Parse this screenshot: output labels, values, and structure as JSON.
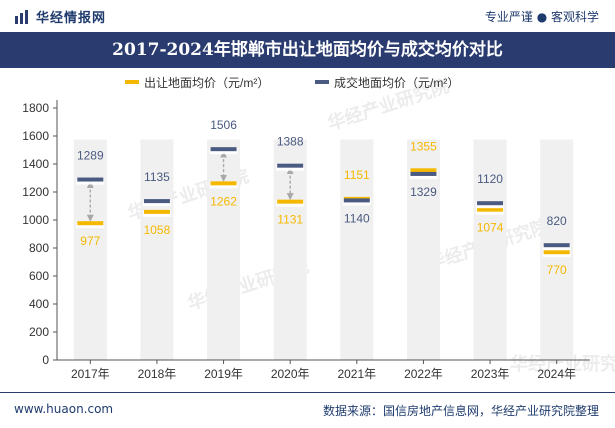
{
  "header": {
    "brand": "华经情报网",
    "tagline": "专业严谨 ● 客观科学",
    "title": "2017-2024年邯郸市出让地面均价与成交均价对比"
  },
  "footer": {
    "url": "www.huaon.com",
    "source": "数据来源：国信房地产信息网，华经产业研究院整理"
  },
  "watermark": "华经产业研究院",
  "colors": {
    "title_bg": "#2a3b6f",
    "series1": "#f5b800",
    "series2": "#4a5a80",
    "column": "#f0f0f0",
    "arrow": "#a8a8a8"
  },
  "chart_data": {
    "type": "line",
    "title": "2017-2024年邯郸市出让地面均价与成交均价对比",
    "categories": [
      "2017年",
      "2018年",
      "2019年",
      "2020年",
      "2021年",
      "2022年",
      "2023年",
      "2024年"
    ],
    "series": [
      {
        "name": "出让地面均价（元/m²）",
        "values": [
          977,
          1058,
          1262,
          1131,
          1151,
          1355,
          1074,
          770
        ]
      },
      {
        "name": "成交地面均价（元/m²）",
        "values": [
          1289,
          1135,
          1506,
          1388,
          1140,
          1329,
          1120,
          820
        ]
      }
    ],
    "yticks": [
      0,
      200,
      400,
      600,
      800,
      1000,
      1200,
      1400,
      1600,
      1800
    ],
    "ylim": [
      0,
      1800
    ],
    "legend": "top-center",
    "grid": false
  }
}
